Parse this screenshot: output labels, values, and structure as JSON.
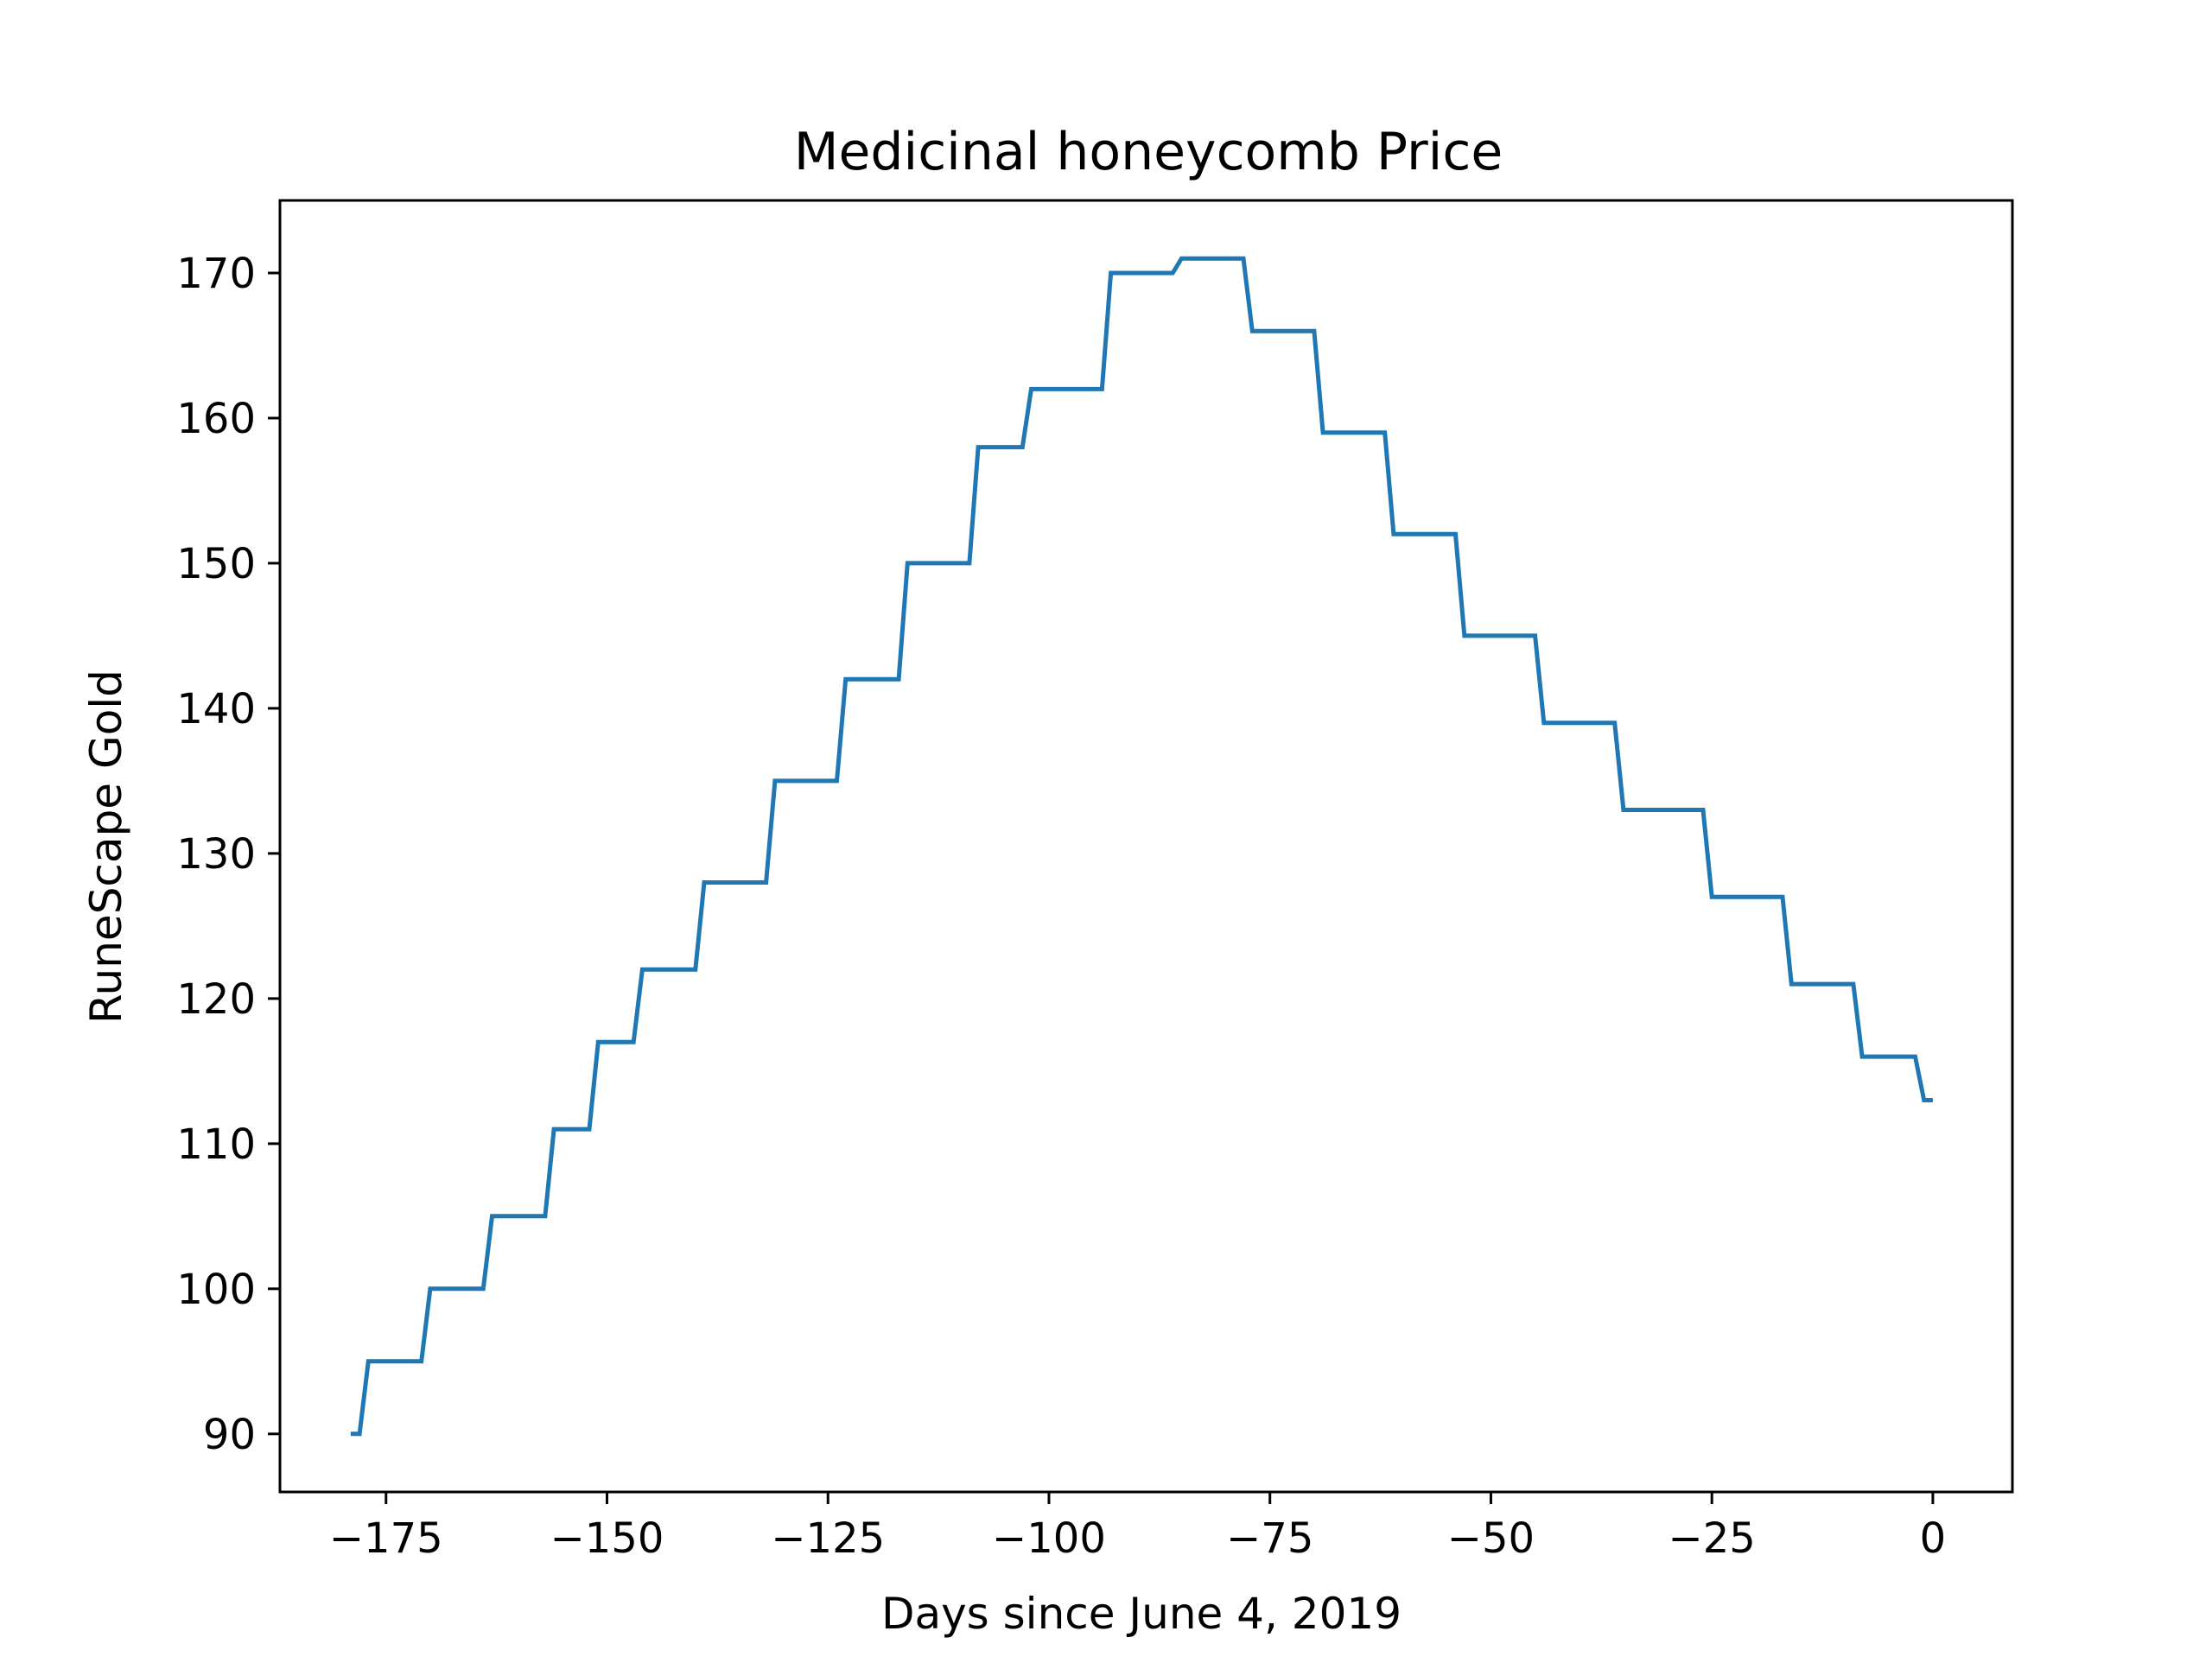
{
  "chart_data": {
    "type": "line",
    "title": "Medicinal honeycomb Price",
    "xlabel": "Days since June 4, 2019",
    "ylabel": "RuneScape Gold",
    "xlim": [
      -187,
      9
    ],
    "ylim": [
      86,
      175
    ],
    "x_ticks": [
      -175,
      -150,
      -125,
      -100,
      -75,
      -50,
      -25,
      0
    ],
    "x_tick_labels": [
      "−175",
      "−150",
      "−125",
      "−100",
      "−75",
      "−50",
      "−25",
      "0"
    ],
    "y_ticks": [
      90,
      100,
      110,
      120,
      130,
      140,
      150,
      160,
      170
    ],
    "y_tick_labels": [
      "90",
      "100",
      "110",
      "120",
      "130",
      "140",
      "150",
      "160",
      "170"
    ],
    "grid": false,
    "series": [
      {
        "color": "#1f77b4",
        "x": [
          -179,
          -178,
          -177,
          -171,
          -170,
          -164,
          -163,
          -157,
          -156,
          -152,
          -151,
          -147,
          -146,
          -140,
          -139,
          -132,
          -131,
          -124,
          -123,
          -117,
          -116,
          -109,
          -108,
          -103,
          -102,
          -94,
          -93,
          -86,
          -85,
          -78,
          -77,
          -70,
          -69,
          -62,
          -61,
          -54,
          -53,
          -45,
          -44,
          -36,
          -35,
          -26,
          -25,
          -17,
          -16,
          -9,
          -8,
          -2,
          -1,
          0
        ],
        "y": [
          90,
          90,
          95,
          95,
          100,
          100,
          105,
          105,
          111,
          111,
          117,
          117,
          122,
          122,
          128,
          128,
          135,
          135,
          142,
          142,
          150,
          150,
          158,
          158,
          162,
          162,
          170,
          170,
          171,
          171,
          166,
          166,
          159,
          159,
          152,
          152,
          145,
          145,
          139,
          139,
          133,
          133,
          127,
          127,
          121,
          121,
          116,
          116,
          113,
          113
        ]
      }
    ]
  }
}
